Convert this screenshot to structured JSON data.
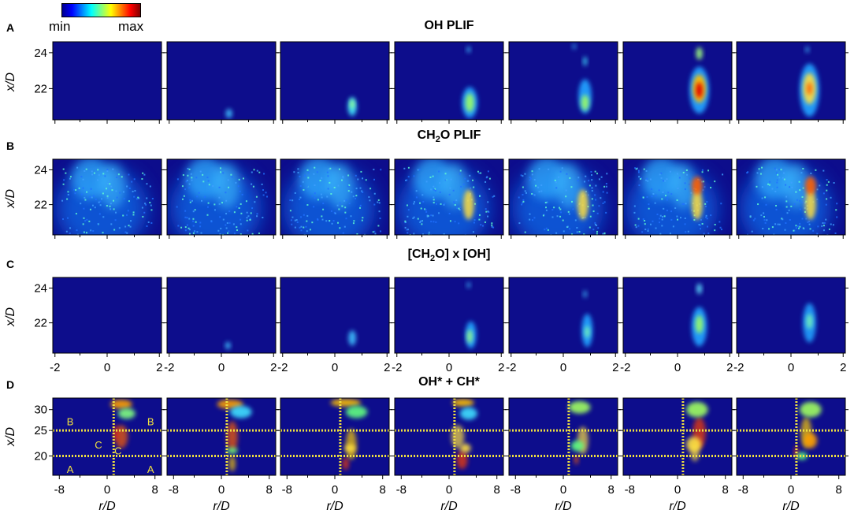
{
  "colorbar": {
    "min_label": "min",
    "max_label": "max",
    "colormap": "jet",
    "stops": [
      "#00008f",
      "#0000ff",
      "#0080ff",
      "#00ffff",
      "#80ff80",
      "#ffff00",
      "#ff8000",
      "#ff0000",
      "#800000"
    ]
  },
  "background_color": "#0d0d8c",
  "rows": [
    {
      "letter": "A",
      "title": "OH PLIF",
      "y_ticks": [
        "24",
        "22"
      ],
      "y_label": "x/D"
    },
    {
      "letter": "B",
      "title": "CH2O PLIF",
      "title_base": "CH",
      "title_sub": "2",
      "title_rest": "O PLIF",
      "y_ticks": [
        "24",
        "22"
      ],
      "y_label": "x/D"
    },
    {
      "letter": "C",
      "title": "[CH2O] x [OH]",
      "title_base": "[CH",
      "title_sub": "2",
      "title_rest": "O] x [OH]",
      "y_ticks": [
        "24",
        "22"
      ],
      "y_label": "x/D",
      "x_ticks": [
        "-2",
        "0",
        "2"
      ]
    },
    {
      "letter": "D",
      "title": "OH* + CH*",
      "y_ticks": [
        "30",
        "25",
        "20"
      ],
      "y_label": "x/D",
      "x_ticks": [
        "-8",
        "0",
        "8"
      ],
      "x_label": "r/D",
      "annotations": [
        "B",
        "B",
        "C",
        "C",
        "A",
        "A"
      ],
      "guide_color": "#f0e040"
    }
  ],
  "frames_per_row": 7
}
